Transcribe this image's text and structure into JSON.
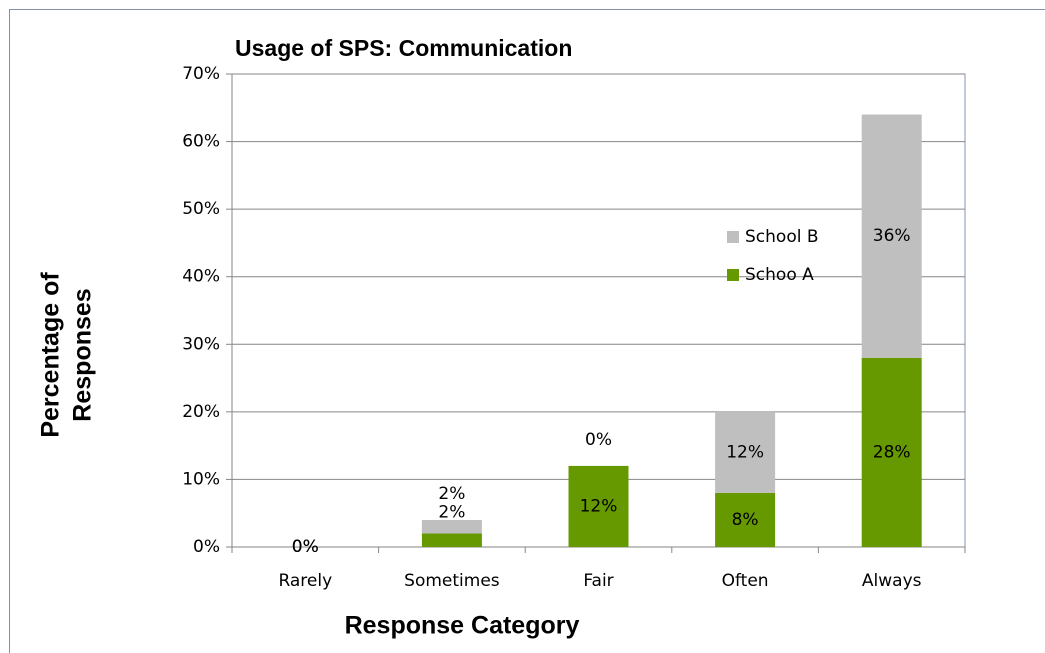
{
  "chart_data": {
    "type": "stacked_bar",
    "title": "Usage of SPS: Communication",
    "xlabel": "Response Category",
    "ylabel": [
      "Percentage of",
      "Responses"
    ],
    "categories": [
      "Rarely",
      "Sometimes",
      "Fair",
      "Often",
      "Always"
    ],
    "series": [
      {
        "name": "Schoo A",
        "color": "#669900",
        "values": [
          0,
          2,
          12,
          8,
          28
        ],
        "value_labels": [
          "0%",
          "2%",
          "12%",
          "8%",
          "28%"
        ]
      },
      {
        "name": "School B",
        "color": "#bfbfbf",
        "values": [
          0,
          2,
          0,
          12,
          36
        ],
        "value_labels": [
          "0%",
          "2%",
          "0%",
          "12%",
          "36%"
        ]
      }
    ],
    "ylim": [
      0,
      70
    ],
    "yticks": [
      {
        "value": 0,
        "label": "0%"
      },
      {
        "value": 10,
        "label": "10%"
      },
      {
        "value": 20,
        "label": "20%"
      },
      {
        "value": 30,
        "label": "30%"
      },
      {
        "value": 40,
        "label": "40%"
      },
      {
        "value": 50,
        "label": "50%"
      },
      {
        "value": 60,
        "label": "60%"
      },
      {
        "value": 70,
        "label": "70%"
      }
    ],
    "legend": "right"
  }
}
